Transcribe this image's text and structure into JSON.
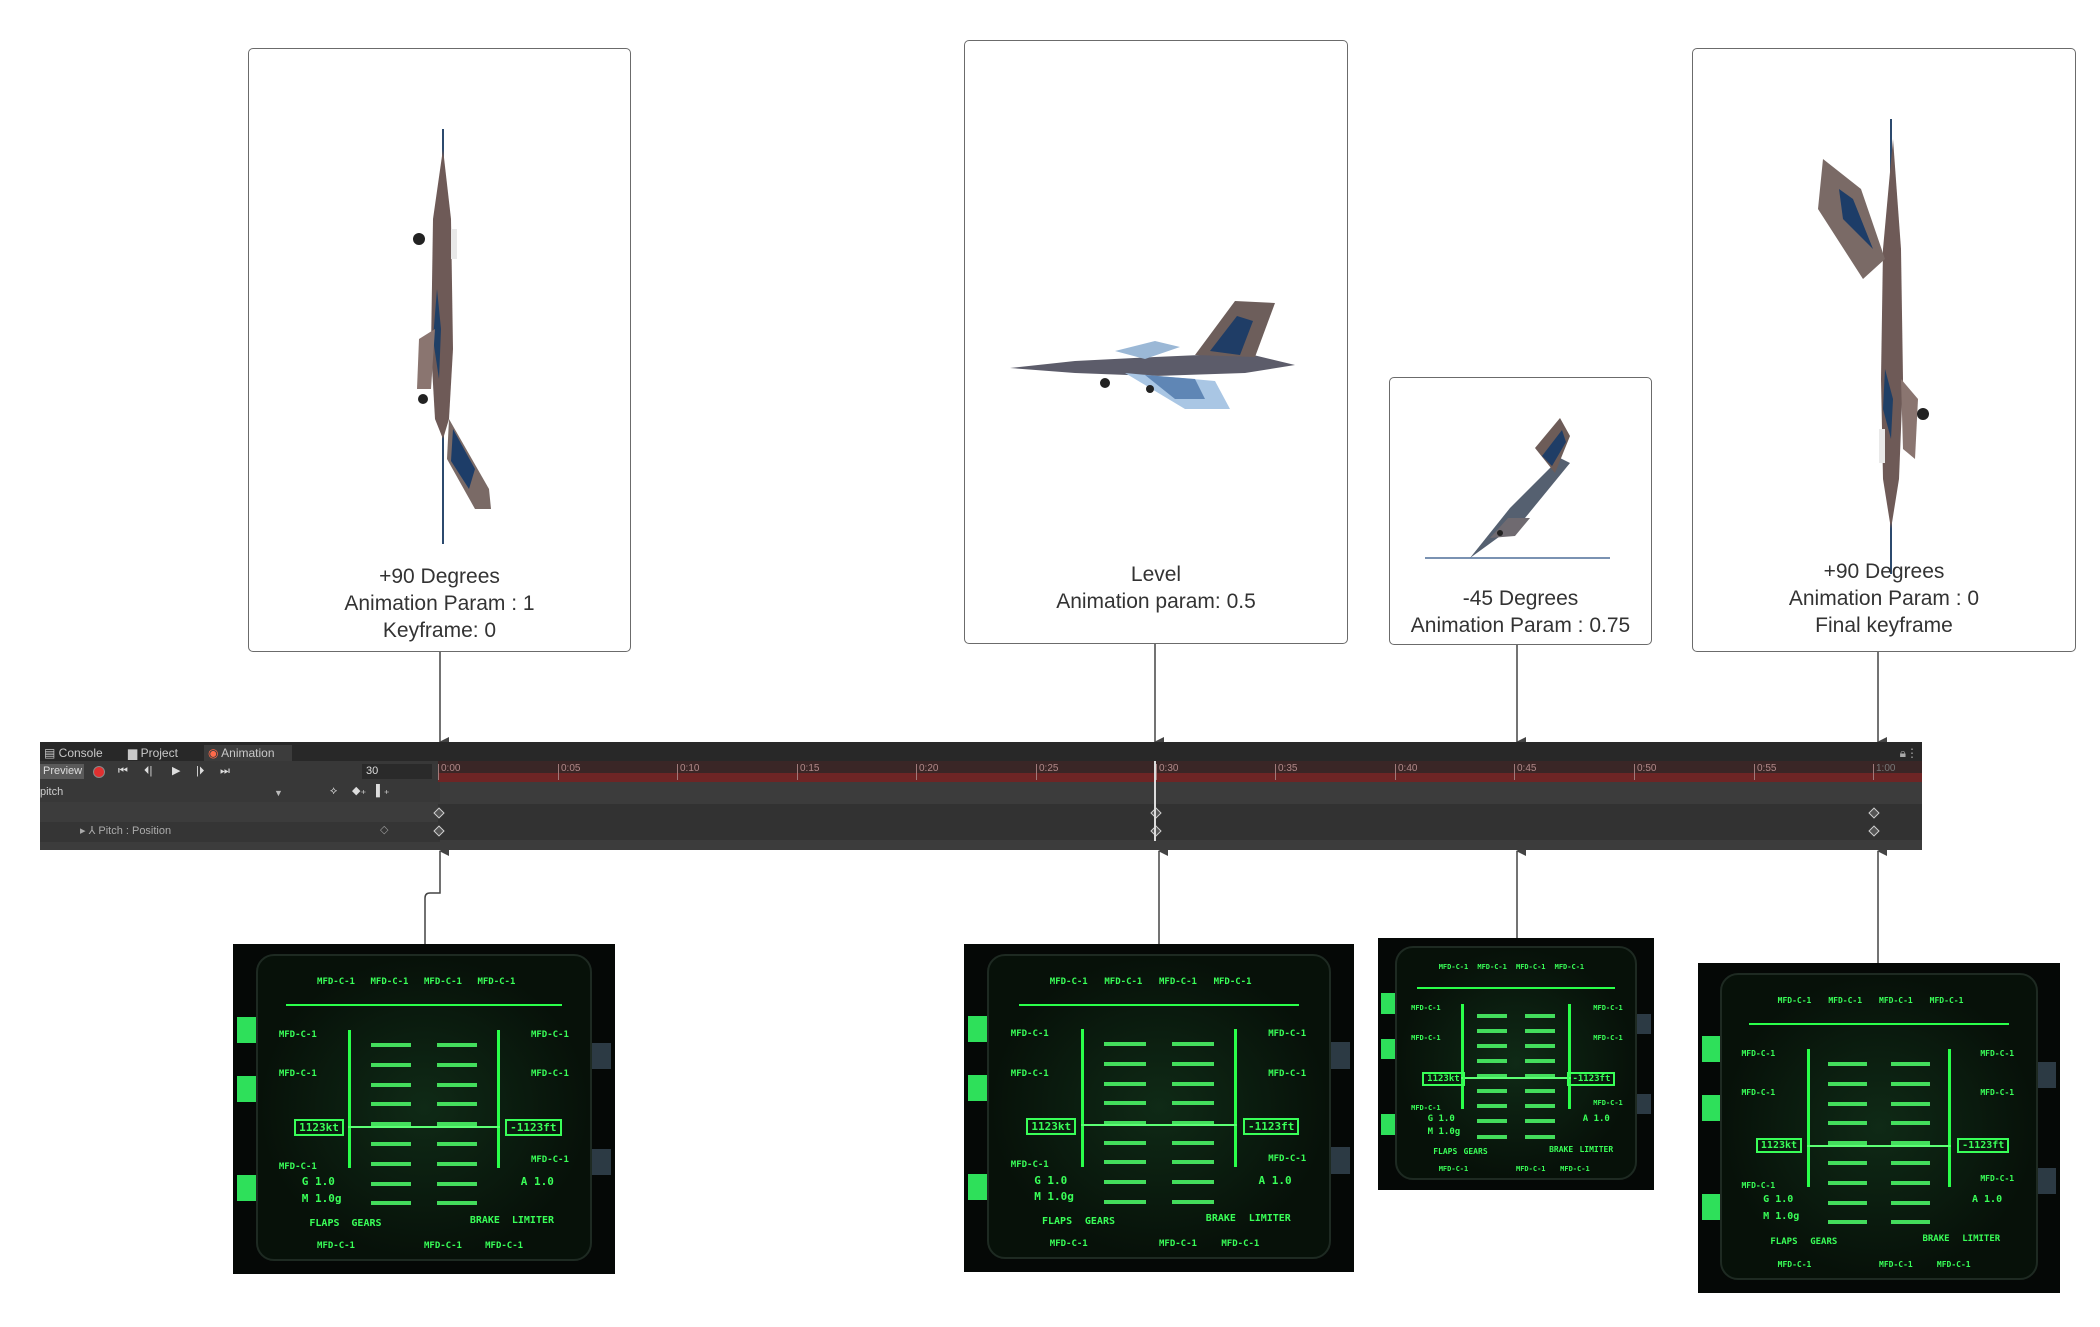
{
  "cards": [
    {
      "lines": [
        "+90 Degrees",
        "Animation Param : 1",
        "Keyframe: 0"
      ]
    },
    {
      "lines": [
        "Level",
        "Animation param: 0.5"
      ]
    },
    {
      "lines": [
        "-45 Degrees",
        "Animation Param : 0.75"
      ]
    },
    {
      "lines": [
        "+90 Degrees",
        "Animation Param : 0",
        "Final keyframe"
      ]
    }
  ],
  "timeline": {
    "tabs": [
      "Console",
      "Project",
      "Animation"
    ],
    "active_tab": "Animation",
    "preview_label": "Preview",
    "frame_value": "30",
    "clip_name": "pitch",
    "property_label": "Pitch : Position",
    "ruler_ticks": [
      "0:00",
      "0:05",
      "0:10",
      "0:15",
      "0:20",
      "0:25",
      "0:30",
      "0:35",
      "0:40",
      "0:45",
      "0:50",
      "0:55",
      "1:00"
    ]
  },
  "hud": {
    "mfd_label": "MFD-C-1",
    "speed": "1123kt",
    "altitude": "-1123ft",
    "g_readout": "G 1.0",
    "m_readout": "M 1.0g",
    "a_readout": "A 1.0",
    "flaps": "FLAPS",
    "gears": "GEARS",
    "brake": "BRAKE",
    "limiter": "LIMITER"
  },
  "colors": {
    "hud_green": "#39ff58",
    "timeline_bg": "#3c3c3c",
    "ruler_red": "#6e2525",
    "card_border": "#6b6b6b"
  }
}
